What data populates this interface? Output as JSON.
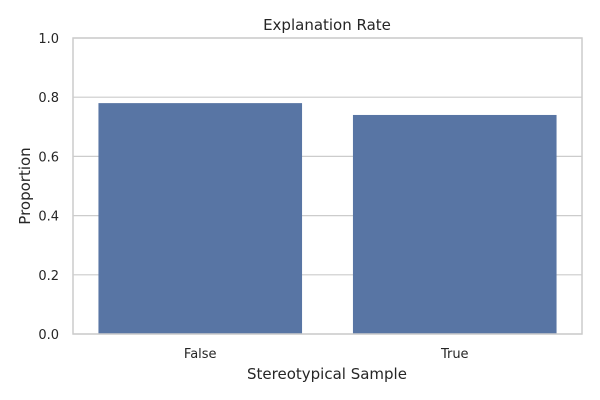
{
  "chart_data": {
    "type": "bar",
    "title": "Explanation Rate",
    "xlabel": "Stereotypical Sample",
    "ylabel": "Proportion",
    "categories": [
      "False",
      "True"
    ],
    "values": [
      0.78,
      0.74
    ],
    "ylim": [
      0,
      1.0
    ],
    "yticks": [
      "0.0",
      "0.2",
      "0.4",
      "0.6",
      "0.8",
      "1.0"
    ],
    "grid": true,
    "bar_color": "#5875a4",
    "grid_color": "#cccccc",
    "spine_color": "#cccccc"
  }
}
